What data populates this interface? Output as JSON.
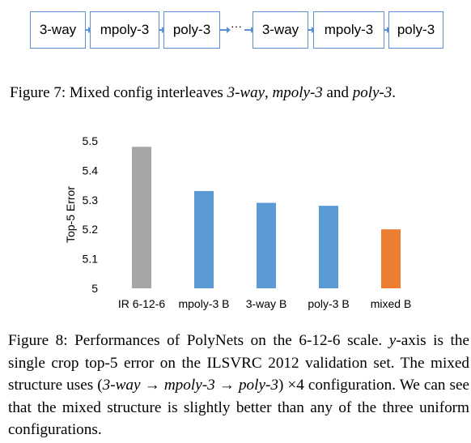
{
  "figure7": {
    "blocks_left": [
      "3-way",
      "mpoly-3",
      "poly-3"
    ],
    "ellipsis": "···",
    "blocks_right": [
      "3-way",
      "mpoly-3",
      "poly-3"
    ],
    "caption": {
      "label": "Figure 7:",
      "text_1": " Mixed config interleaves ",
      "italic_1": "3-way",
      "sep_1": ", ",
      "italic_2": "mpoly-3",
      "sep_2": " and ",
      "italic_3": "poly-3",
      "end": "."
    }
  },
  "chart_data": {
    "type": "bar",
    "categories": [
      "IR 6-12-6",
      "mpoly-3 B",
      "3-way B",
      "poly-3 B",
      "mixed B"
    ],
    "values": [
      5.48,
      5.33,
      5.29,
      5.28,
      5.2
    ],
    "colors": [
      "#a6a6a6",
      "#5b9bd5",
      "#5b9bd5",
      "#5b9bd5",
      "#ed7d31"
    ],
    "ylabel": "Top-5 Error",
    "ylim": [
      5.0,
      5.5
    ],
    "yticks": [
      "5",
      "5.1",
      "5.2",
      "5.3",
      "5.4",
      "5.5"
    ],
    "ytick_values": [
      5.0,
      5.1,
      5.2,
      5.3,
      5.4,
      5.5
    ],
    "grid": false
  },
  "figure8": {
    "caption": {
      "label": "Figure 8:",
      "text_1": " Performances of PolyNets on the 6-12-6 scale. ",
      "italic_y": "y",
      "text_2": "-axis is the single crop top-5 error on the ILSVRC 2012 validation set. The mixed structure uses (",
      "italic_1": "3-way",
      "arrow_1": " → ",
      "italic_2": "mpoly-3",
      "arrow_2": " → ",
      "italic_3": "poly-3",
      "text_3": ") ×4 configuration. We can see that the mixed structure is slightly better than any of the three uniform configurations."
    }
  }
}
